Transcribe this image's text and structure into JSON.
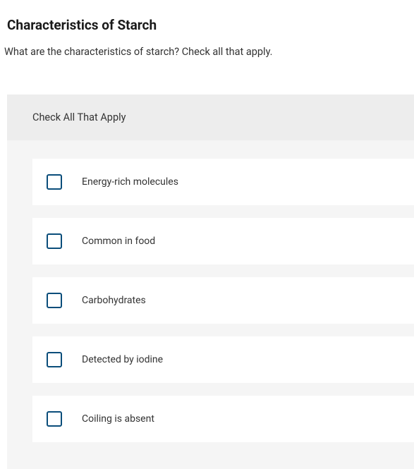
{
  "header": {
    "title": "Characteristics of Starch"
  },
  "question": {
    "text": "What are the characteristics of starch?  Check all that apply.",
    "instruction": "Check All That Apply",
    "options": [
      {
        "label": "Energy-rich molecules",
        "checked": false
      },
      {
        "label": "Common in food",
        "checked": false
      },
      {
        "label": "Carbohydrates",
        "checked": false
      },
      {
        "label": "Detected by iodine",
        "checked": false
      },
      {
        "label": "Coiling is absent",
        "checked": false
      }
    ]
  },
  "colors": {
    "page_bg": "#ffffff",
    "container_bg": "#f5f5f5",
    "instruction_bg": "#ededed",
    "option_bg": "#ffffff",
    "checkbox_border": "#0a4d7a",
    "text_primary": "#1a1a1a",
    "text_body": "#333333"
  }
}
